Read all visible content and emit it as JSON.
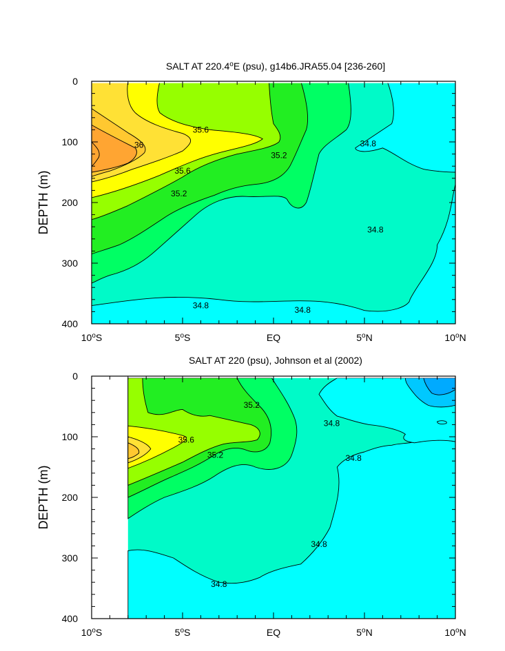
{
  "chart_data": [
    {
      "type": "contour",
      "title_main": "SALT AT 220.4",
      "title_sup": "o",
      "title_rest": "E (psu), g14b6.JRA55.04 [236-260]",
      "ylabel": "DEPTH (m)",
      "xlim": [
        -10,
        10
      ],
      "ylim": [
        0,
        400
      ],
      "y_inverted": true,
      "xticks": [
        {
          "value": -10,
          "num": "10",
          "hemi": "S"
        },
        {
          "value": -5,
          "num": "5",
          "hemi": "S"
        },
        {
          "value": 0,
          "num": "EQ",
          "hemi": ""
        },
        {
          "value": 5,
          "num": "5",
          "hemi": "N"
        },
        {
          "value": 10,
          "num": "10",
          "hemi": "N"
        }
      ],
      "yticks": [
        "0",
        "100",
        "200",
        "300",
        "400"
      ],
      "ytick_values": [
        0,
        100,
        200,
        300,
        400
      ],
      "fill_levels": [
        {
          "level": "34.6",
          "color": "#00ffff"
        },
        {
          "level": "34.8",
          "color": "#00fac8"
        },
        {
          "level": "35.0",
          "color": "#00ff64"
        },
        {
          "level": "35.2",
          "color": "#22ee22"
        },
        {
          "level": "35.4",
          "color": "#96ff00"
        },
        {
          "level": "35.6",
          "color": "#ffff00"
        },
        {
          "level": "35.8",
          "color": "#ffe135"
        },
        {
          "level": "36.0",
          "color": "#ffc830"
        },
        {
          "level": "36.2",
          "color": "#ffa532"
        }
      ],
      "contour_labels": [
        {
          "text": "35.6",
          "x": -4.0,
          "y": 80
        },
        {
          "text": "36",
          "x": -7.4,
          "y": 105
        },
        {
          "text": "35.6",
          "x": -5.0,
          "y": 148
        },
        {
          "text": "35.2",
          "x": -5.2,
          "y": 185
        },
        {
          "text": "35.2",
          "x": 0.3,
          "y": 122
        },
        {
          "text": "34.8",
          "x": 5.2,
          "y": 103
        },
        {
          "text": "34.8",
          "x": 5.6,
          "y": 245
        },
        {
          "text": "34.8",
          "x": -4.0,
          "y": 370
        },
        {
          "text": "34.8",
          "x": 1.6,
          "y": 377
        }
      ]
    },
    {
      "type": "contour",
      "title_main": "SALT AT 220 (psu), Johnson et al (2002)",
      "title_sup": "",
      "title_rest": "",
      "ylabel": "DEPTH (m)",
      "xlim": [
        -10,
        10
      ],
      "ylim": [
        0,
        400
      ],
      "y_inverted": true,
      "data_xlim": [
        -8,
        10
      ],
      "xticks": [
        {
          "value": -10,
          "num": "10",
          "hemi": "S"
        },
        {
          "value": -5,
          "num": "5",
          "hemi": "S"
        },
        {
          "value": 0,
          "num": "EQ",
          "hemi": ""
        },
        {
          "value": 5,
          "num": "5",
          "hemi": "N"
        },
        {
          "value": 10,
          "num": "10",
          "hemi": "N"
        }
      ],
      "yticks": [
        "0",
        "100",
        "200",
        "300",
        "400"
      ],
      "ytick_values": [
        0,
        100,
        200,
        300,
        400
      ],
      "fill_levels": [
        {
          "level": "34.4",
          "color": "#00c8ff"
        },
        {
          "level": "34.6",
          "color": "#00ffff"
        },
        {
          "level": "34.8",
          "color": "#00fac8"
        },
        {
          "level": "35.0",
          "color": "#00ff64"
        },
        {
          "level": "35.2",
          "color": "#22ee22"
        },
        {
          "level": "35.4",
          "color": "#96ff00"
        },
        {
          "level": "35.6",
          "color": "#ffff00"
        },
        {
          "level": "35.8",
          "color": "#ffe135"
        },
        {
          "level": "36.0",
          "color": "#ffc830"
        }
      ],
      "contour_labels": [
        {
          "text": "35.2",
          "x": -1.2,
          "y": 48
        },
        {
          "text": "34.8",
          "x": 3.2,
          "y": 78
        },
        {
          "text": "35.6",
          "x": -4.8,
          "y": 105
        },
        {
          "text": "35.2",
          "x": -3.2,
          "y": 130
        },
        {
          "text": "34.8",
          "x": 4.4,
          "y": 135
        },
        {
          "text": "34.8",
          "x": 2.5,
          "y": 277
        },
        {
          "text": "34.8",
          "x": -3.0,
          "y": 343
        }
      ]
    }
  ]
}
